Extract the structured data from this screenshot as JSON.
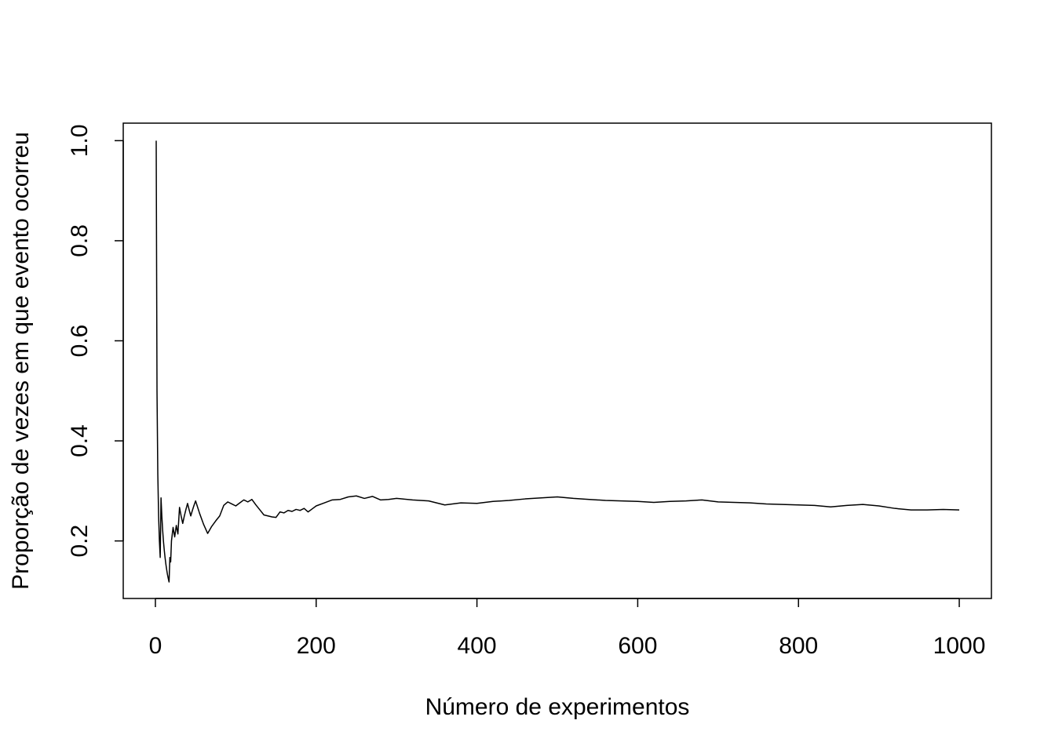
{
  "chart_data": {
    "type": "line",
    "title": "",
    "xlabel": "Número de experimentos",
    "ylabel": "Proporção de vezes em que evento ocorreu",
    "xlim": [
      -40,
      1040
    ],
    "ylim": [
      0.085,
      1.035
    ],
    "x_ticks": [
      0,
      200,
      400,
      600,
      800,
      1000
    ],
    "x_tick_labels": [
      "0",
      "200",
      "400",
      "600",
      "800",
      "1000"
    ],
    "y_ticks": [
      0.2,
      0.4,
      0.6,
      0.8,
      1.0
    ],
    "y_tick_labels": [
      "0.2",
      "0.4",
      "0.6",
      "0.8",
      "1.0"
    ],
    "grid": false,
    "legend": "none",
    "line_color": "#000000",
    "series": [
      {
        "x": [
          1,
          2,
          3,
          4,
          5,
          6,
          7,
          8,
          9,
          10,
          11,
          12,
          13,
          14,
          15,
          16,
          17,
          18,
          19,
          20,
          22,
          24,
          26,
          28,
          30,
          32,
          34,
          36,
          38,
          40,
          42,
          44,
          46,
          48,
          50,
          55,
          60,
          65,
          70,
          75,
          80,
          85,
          90,
          95,
          100,
          105,
          110,
          115,
          120,
          125,
          130,
          135,
          140,
          145,
          150,
          155,
          160,
          165,
          170,
          175,
          180,
          185,
          190,
          195,
          200,
          210,
          220,
          230,
          240,
          250,
          260,
          270,
          280,
          290,
          300,
          320,
          340,
          360,
          380,
          400,
          420,
          440,
          460,
          480,
          500,
          520,
          540,
          560,
          580,
          600,
          620,
          640,
          660,
          680,
          700,
          720,
          740,
          760,
          780,
          800,
          820,
          840,
          860,
          880,
          900,
          920,
          940,
          960,
          980,
          1000
        ],
        "y": [
          1.0,
          0.5,
          0.333,
          0.25,
          0.2,
          0.167,
          0.286,
          0.25,
          0.222,
          0.2,
          0.182,
          0.167,
          0.154,
          0.143,
          0.133,
          0.125,
          0.118,
          0.167,
          0.158,
          0.2,
          0.227,
          0.208,
          0.231,
          0.214,
          0.267,
          0.25,
          0.235,
          0.25,
          0.263,
          0.275,
          0.262,
          0.25,
          0.261,
          0.271,
          0.28,
          0.255,
          0.233,
          0.215,
          0.229,
          0.24,
          0.25,
          0.271,
          0.278,
          0.274,
          0.27,
          0.276,
          0.282,
          0.278,
          0.283,
          0.272,
          0.262,
          0.252,
          0.25,
          0.248,
          0.247,
          0.258,
          0.256,
          0.261,
          0.259,
          0.263,
          0.261,
          0.265,
          0.258,
          0.264,
          0.27,
          0.276,
          0.282,
          0.283,
          0.288,
          0.29,
          0.285,
          0.289,
          0.282,
          0.283,
          0.285,
          0.282,
          0.28,
          0.272,
          0.276,
          0.275,
          0.279,
          0.281,
          0.284,
          0.286,
          0.288,
          0.285,
          0.283,
          0.281,
          0.28,
          0.279,
          0.277,
          0.279,
          0.28,
          0.282,
          0.278,
          0.277,
          0.276,
          0.274,
          0.273,
          0.272,
          0.271,
          0.268,
          0.271,
          0.273,
          0.27,
          0.265,
          0.262,
          0.262,
          0.263,
          0.262
        ]
      }
    ]
  }
}
